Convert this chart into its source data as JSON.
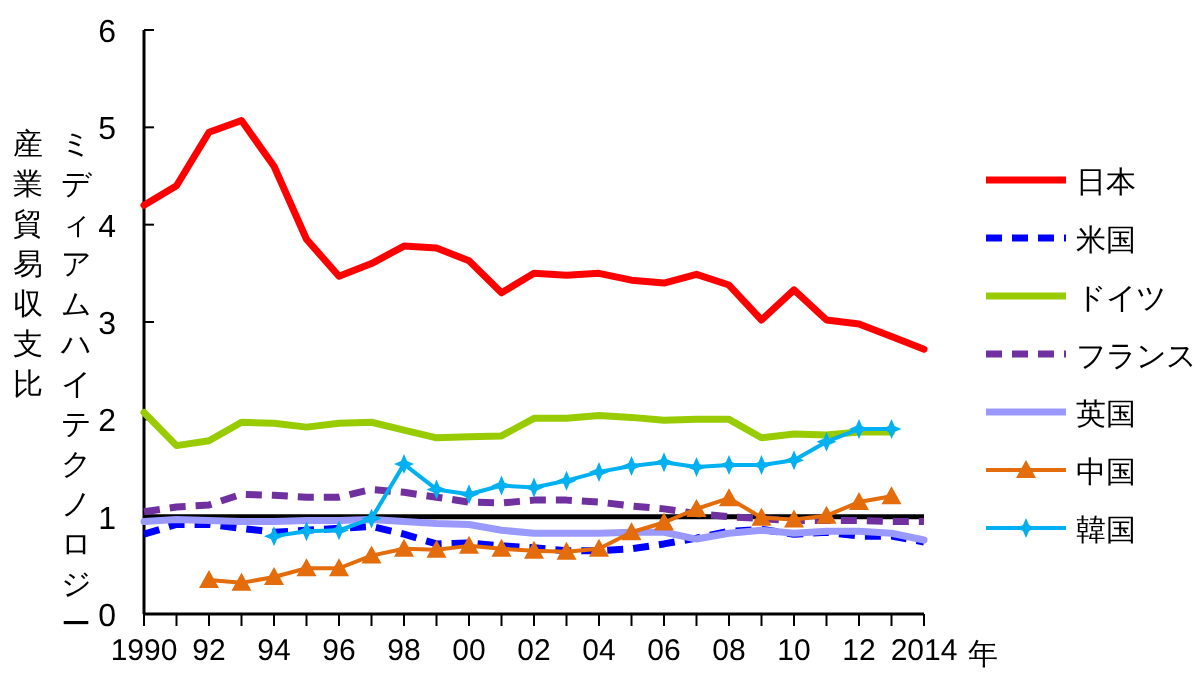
{
  "chart_data": {
    "type": "line",
    "ylabel": "ミディアムハイテクノロジー産業貿易収支比",
    "xlabel": "年",
    "x": [
      1990,
      1991,
      1992,
      1993,
      1994,
      1995,
      1996,
      1997,
      1998,
      1999,
      2000,
      2001,
      2002,
      2003,
      2004,
      2005,
      2006,
      2007,
      2008,
      2009,
      2010,
      2011,
      2012,
      2013,
      2014
    ],
    "xlim": [
      1990,
      2014
    ],
    "xticks": [
      {
        "value": 1990,
        "label": "1990"
      },
      {
        "value": 1991,
        "label": null
      },
      {
        "value": 1992,
        "label": "92"
      },
      {
        "value": 1993,
        "label": null
      },
      {
        "value": 1994,
        "label": "94"
      },
      {
        "value": 1995,
        "label": null
      },
      {
        "value": 1996,
        "label": "96"
      },
      {
        "value": 1997,
        "label": null
      },
      {
        "value": 1998,
        "label": "98"
      },
      {
        "value": 1999,
        "label": null
      },
      {
        "value": 2000,
        "label": "00"
      },
      {
        "value": 2001,
        "label": null
      },
      {
        "value": 2002,
        "label": "02"
      },
      {
        "value": 2003,
        "label": null
      },
      {
        "value": 2004,
        "label": "04"
      },
      {
        "value": 2005,
        "label": null
      },
      {
        "value": 2006,
        "label": "06"
      },
      {
        "value": 2007,
        "label": null
      },
      {
        "value": 2008,
        "label": "08"
      },
      {
        "value": 2009,
        "label": null
      },
      {
        "value": 2010,
        "label": "10"
      },
      {
        "value": 2011,
        "label": null
      },
      {
        "value": 2012,
        "label": "12"
      },
      {
        "value": 2013,
        "label": null
      },
      {
        "value": 2014,
        "label": "2014"
      }
    ],
    "ylim": [
      0,
      6
    ],
    "yticks": [
      0,
      1,
      2,
      3,
      4,
      5,
      6
    ],
    "grid": false,
    "legend": "right",
    "ref_lines": [
      {
        "axis": "y",
        "value": 1,
        "color": "#000000"
      }
    ],
    "series": [
      {
        "name": "日本",
        "color": "#ff0000",
        "line_style": "solid",
        "marker": "none",
        "values": [
          4.2,
          4.4,
          4.95,
          5.07,
          4.6,
          3.85,
          3.47,
          3.6,
          3.78,
          3.76,
          3.63,
          3.3,
          3.5,
          3.48,
          3.5,
          3.43,
          3.4,
          3.49,
          3.38,
          3.02,
          3.33,
          3.02,
          2.98,
          2.85,
          2.72
        ]
      },
      {
        "name": "米国",
        "color": "#0000ff",
        "line_style": "dashed",
        "marker": "none",
        "values": [
          0.82,
          0.92,
          0.92,
          0.88,
          0.84,
          0.86,
          0.88,
          0.9,
          0.82,
          0.72,
          0.73,
          0.7,
          0.68,
          0.65,
          0.65,
          0.67,
          0.72,
          0.78,
          0.85,
          0.87,
          0.82,
          0.84,
          0.8,
          0.8,
          0.74
        ]
      },
      {
        "name": "ドイツ",
        "color": "#99cc00",
        "line_style": "solid",
        "marker": "none",
        "values": [
          2.07,
          1.73,
          1.78,
          1.97,
          1.96,
          1.92,
          1.96,
          1.97,
          1.89,
          1.81,
          1.82,
          1.83,
          2.01,
          2.01,
          2.04,
          2.02,
          1.99,
          2.0,
          2.0,
          1.81,
          1.85,
          1.84,
          1.87,
          1.87,
          null
        ]
      },
      {
        "name": "フランス",
        "color": "#7030a0",
        "line_style": "dashed",
        "marker": "none",
        "values": [
          1.05,
          1.1,
          1.12,
          1.23,
          1.22,
          1.2,
          1.2,
          1.28,
          1.25,
          1.2,
          1.15,
          1.14,
          1.17,
          1.17,
          1.15,
          1.11,
          1.08,
          1.03,
          1.0,
          0.98,
          0.96,
          0.96,
          0.96,
          0.95,
          0.95
        ]
      },
      {
        "name": "英国",
        "color": "#9999ff",
        "line_style": "solid",
        "marker": "none",
        "values": [
          0.95,
          0.97,
          0.96,
          0.95,
          0.95,
          0.96,
          0.96,
          0.97,
          0.95,
          0.93,
          0.92,
          0.86,
          0.83,
          0.83,
          0.83,
          0.84,
          0.84,
          0.77,
          0.83,
          0.86,
          0.83,
          0.85,
          0.85,
          0.83,
          0.76
        ]
      },
      {
        "name": "中国",
        "color": "#e46c0a",
        "line_style": "solid",
        "marker": "triangle",
        "values": [
          null,
          null,
          0.35,
          0.32,
          0.38,
          0.47,
          0.47,
          0.6,
          0.67,
          0.66,
          0.7,
          0.67,
          0.65,
          0.64,
          0.67,
          0.84,
          0.94,
          1.08,
          1.19,
          0.99,
          0.97,
          1.01,
          1.15,
          1.21,
          null
        ]
      },
      {
        "name": "韓国",
        "color": "#00b0f0",
        "line_style": "solid",
        "marker": "star",
        "values": [
          null,
          null,
          null,
          null,
          0.8,
          0.85,
          0.86,
          0.98,
          1.54,
          1.28,
          1.23,
          1.32,
          1.3,
          1.37,
          1.46,
          1.52,
          1.56,
          1.51,
          1.53,
          1.53,
          1.58,
          1.77,
          1.9,
          1.9,
          null
        ]
      }
    ]
  }
}
